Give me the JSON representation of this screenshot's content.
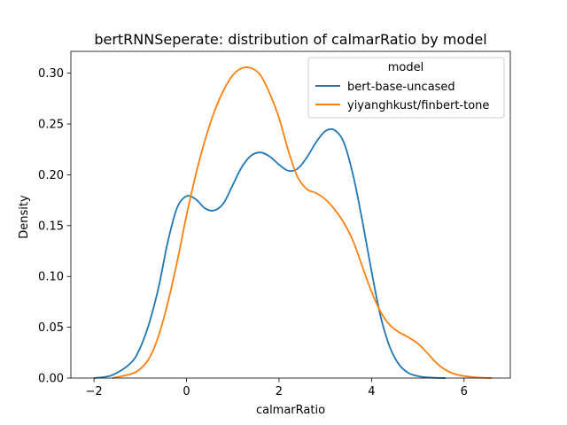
{
  "chart_data": {
    "type": "line",
    "title": "bertRNNSeperate: distribution of calmarRatio by model",
    "xlabel": "calmarRatio",
    "ylabel": "Density",
    "xlim": [
      -2.5,
      7.0
    ],
    "ylim": [
      0.0,
      0.3215
    ],
    "xticks": [
      -2,
      0,
      2,
      4,
      6
    ],
    "xtick_labels": [
      "−2",
      "0",
      "2",
      "4",
      "6"
    ],
    "yticks": [
      0.0,
      0.05,
      0.1,
      0.15,
      0.2,
      0.25,
      0.3
    ],
    "ytick_labels": [
      "0.00",
      "0.05",
      "0.10",
      "0.15",
      "0.20",
      "0.25",
      "0.30"
    ],
    "grid": false,
    "legend": {
      "title": "model",
      "placement": "top-right"
    },
    "series": [
      {
        "name": "bert-base-uncased",
        "color": "#1f77b4",
        "x": [
          -2.0,
          -1.6,
          -1.2,
          -1.0,
          -0.8,
          -0.6,
          -0.4,
          -0.2,
          0.0,
          0.2,
          0.4,
          0.6,
          0.8,
          1.0,
          1.2,
          1.4,
          1.6,
          1.8,
          2.0,
          2.2,
          2.4,
          2.6,
          2.8,
          3.0,
          3.2,
          3.4,
          3.6,
          3.8,
          4.0,
          4.2,
          4.4,
          4.6,
          4.8,
          5.0,
          5.2,
          5.4,
          5.6
        ],
        "y": [
          0.0,
          0.003,
          0.015,
          0.03,
          0.055,
          0.09,
          0.135,
          0.168,
          0.179,
          0.176,
          0.167,
          0.165,
          0.172,
          0.19,
          0.208,
          0.219,
          0.222,
          0.218,
          0.21,
          0.204,
          0.206,
          0.217,
          0.232,
          0.243,
          0.244,
          0.232,
          0.2,
          0.155,
          0.105,
          0.06,
          0.03,
          0.013,
          0.005,
          0.002,
          0.0007,
          0.0002,
          0.0
        ]
      },
      {
        "name": "yiyanghkust/finbert-tone",
        "color": "#ff7f0e",
        "x": [
          -1.6,
          -1.2,
          -1.0,
          -0.8,
          -0.6,
          -0.4,
          -0.2,
          0.0,
          0.2,
          0.4,
          0.6,
          0.8,
          1.0,
          1.2,
          1.4,
          1.6,
          1.8,
          2.0,
          2.2,
          2.4,
          2.6,
          2.8,
          3.0,
          3.2,
          3.4,
          3.6,
          3.8,
          4.0,
          4.2,
          4.4,
          4.6,
          4.8,
          5.0,
          5.2,
          5.4,
          5.6,
          5.8,
          6.0,
          6.2,
          6.4,
          6.6
        ],
        "y": [
          0.0,
          0.004,
          0.009,
          0.02,
          0.042,
          0.075,
          0.115,
          0.16,
          0.2,
          0.234,
          0.262,
          0.283,
          0.298,
          0.305,
          0.305,
          0.298,
          0.28,
          0.256,
          0.224,
          0.198,
          0.186,
          0.182,
          0.176,
          0.166,
          0.153,
          0.135,
          0.11,
          0.085,
          0.065,
          0.052,
          0.045,
          0.04,
          0.034,
          0.025,
          0.015,
          0.008,
          0.004,
          0.002,
          0.001,
          0.0003,
          0.0
        ]
      }
    ]
  }
}
